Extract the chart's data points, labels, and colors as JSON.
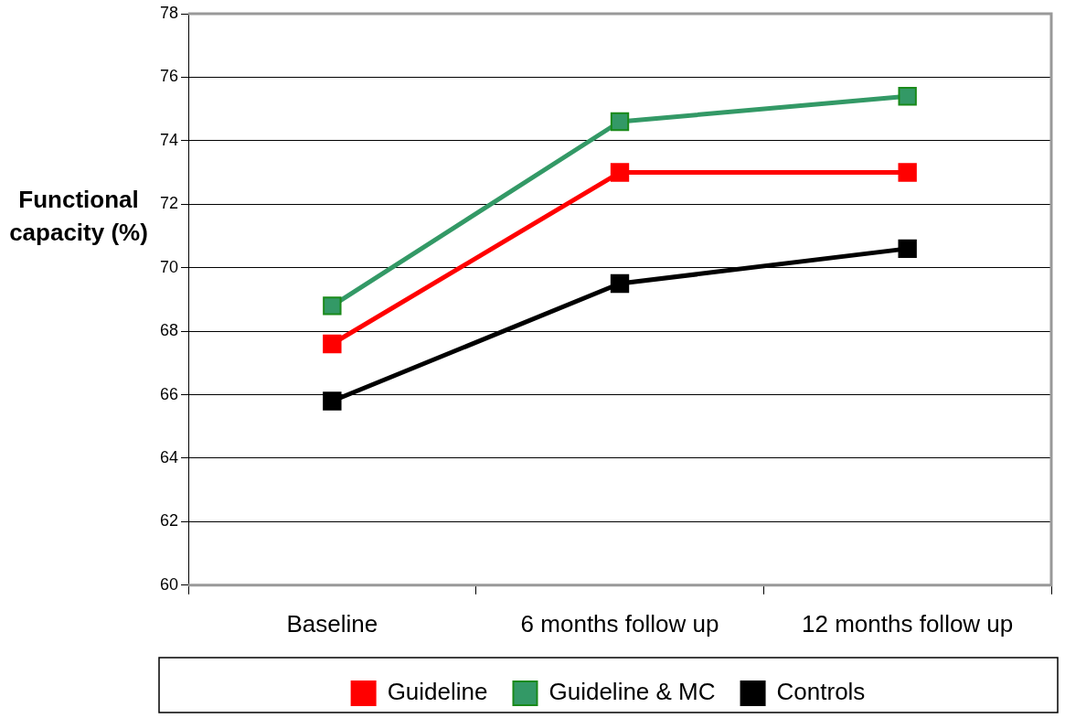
{
  "chart_data": {
    "type": "line",
    "ylabel": "Functional capacity (%)",
    "categories": [
      "Baseline",
      "6 months follow up",
      "12 months follow up"
    ],
    "series": [
      {
        "name": "Guideline",
        "color": "#ff0000",
        "values": [
          67.6,
          73.0,
          73.0
        ]
      },
      {
        "name": "Guideline & MC",
        "color": "#339966",
        "values": [
          68.8,
          74.6,
          75.4
        ]
      },
      {
        "name": "Controls",
        "color": "#000000",
        "values": [
          65.8,
          69.5,
          70.6
        ]
      }
    ],
    "ylim": [
      60,
      78
    ],
    "yticks": [
      60,
      62,
      64,
      66,
      68,
      70,
      72,
      74,
      76,
      78
    ],
    "grid": "y",
    "legend": "bottom",
    "marker": "square",
    "line_style": "solid"
  }
}
